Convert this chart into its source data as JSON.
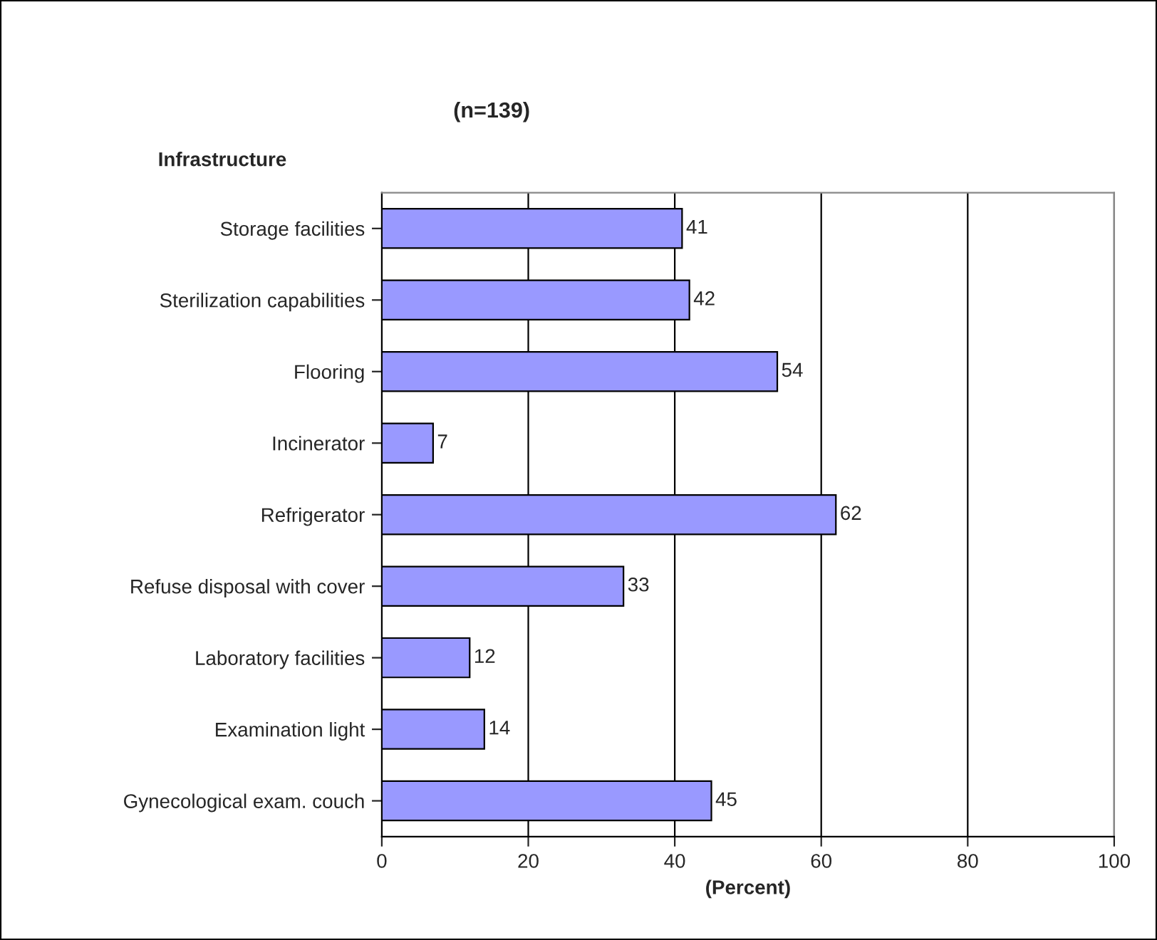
{
  "chart_data": {
    "type": "bar",
    "orientation": "horizontal",
    "title": "(n=139)",
    "ylabel": "Infrastructure",
    "xlabel": "(Percent)",
    "categories": [
      "Storage facilities",
      "Sterilization capabilities",
      "Flooring",
      "Incinerator",
      "Refrigerator",
      "Refuse disposal with cover",
      "Laboratory facilities",
      "Examination light",
      "Gynecological exam. couch"
    ],
    "values": [
      41,
      42,
      54,
      7,
      62,
      33,
      12,
      14,
      45
    ],
    "color": "#9999ff",
    "data_labels": true,
    "xlim": [
      0,
      100
    ],
    "xticks": [
      0,
      20,
      40,
      60,
      80,
      100
    ],
    "grid": "x",
    "legend": false
  }
}
